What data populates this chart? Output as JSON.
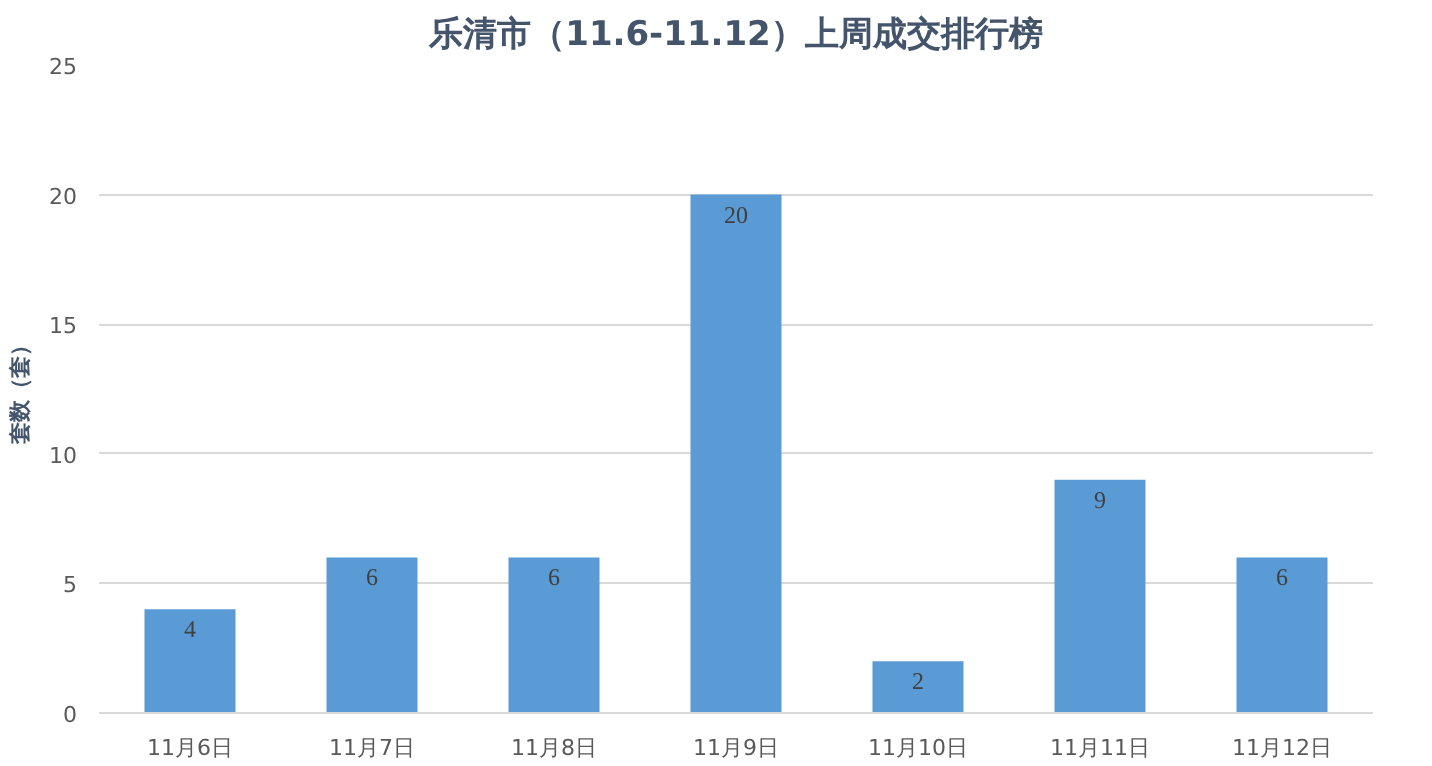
{
  "chart_data": {
    "type": "bar",
    "title": "乐清市（11.6-11.12）上周成交排行榜",
    "ylabel": "套数（套）",
    "categories": [
      "11月6日",
      "11月7日",
      "11月8日",
      "11月9日",
      "11月10日",
      "11月11日",
      "11月12日"
    ],
    "values": [
      4,
      6,
      6,
      20,
      2,
      9,
      6
    ],
    "color": "#5b9bd5",
    "data_labels": true,
    "ylim": [
      0,
      25
    ],
    "yticks": [
      0,
      5,
      10,
      15,
      20,
      25
    ],
    "grid": "y"
  }
}
